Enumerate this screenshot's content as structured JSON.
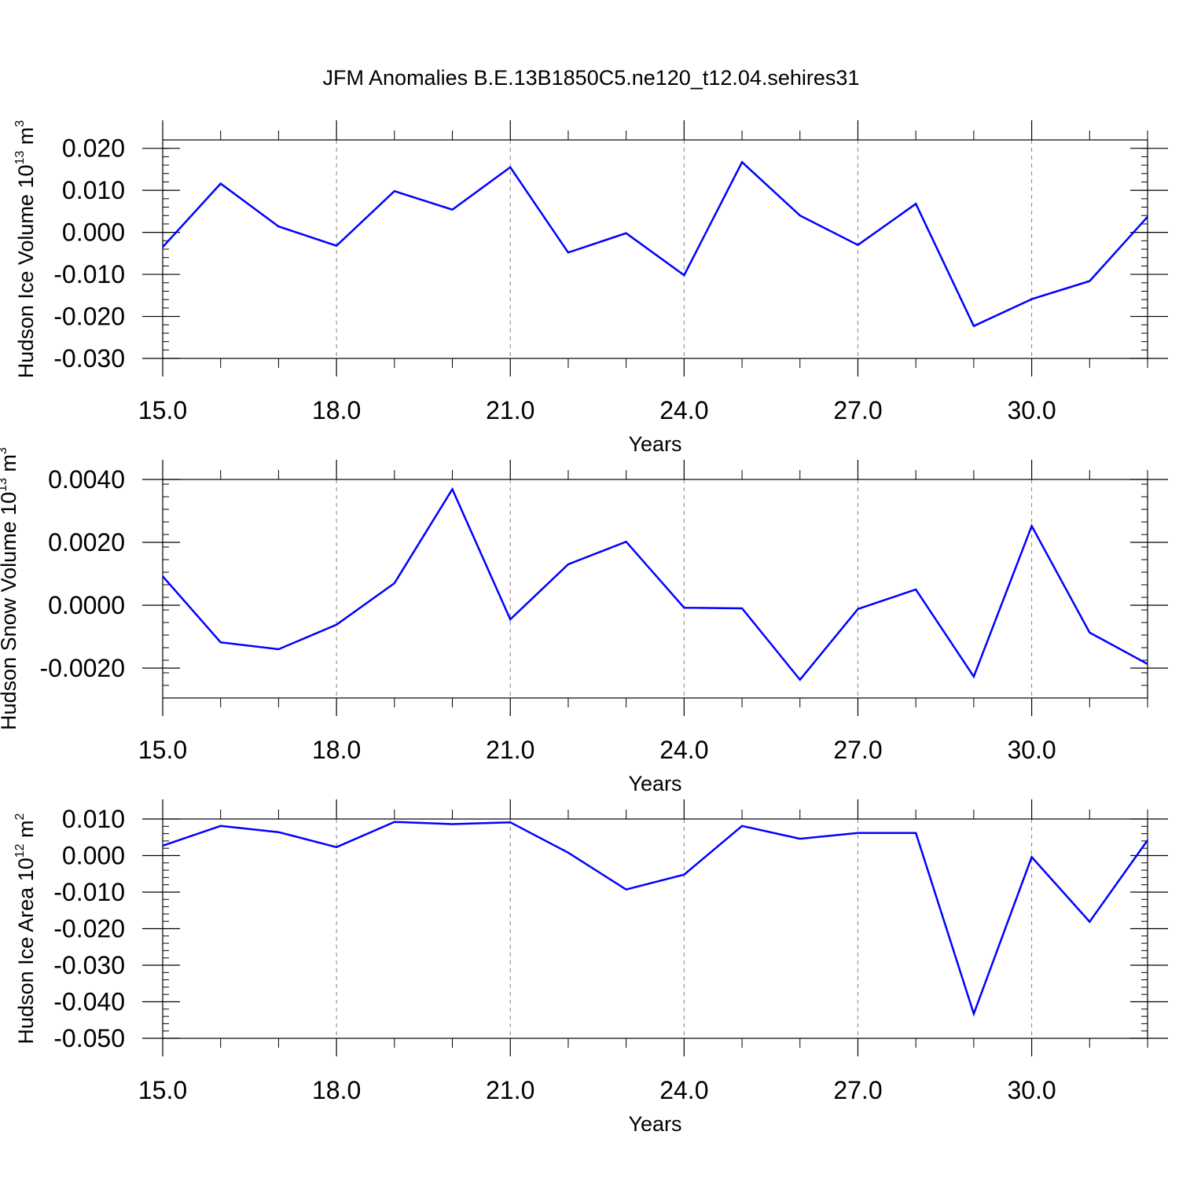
{
  "title": "JFM Anomalies B.E.13B1850C5.ne120_t12.04.sehires31",
  "colors": {
    "series": "#0000ff",
    "axis": "#000000",
    "grid": "#808080"
  },
  "chart_data": [
    {
      "type": "line",
      "ylabel": {
        "text": "Hudson Ice Volume 10",
        "exponent": "13",
        "unit": " m",
        "unit_exponent": "3"
      },
      "xlabel": "Years",
      "xlim": [
        15,
        32
      ],
      "ylim": [
        -0.03,
        0.022
      ],
      "grid": "vertical dashed at major x ticks",
      "xticks": [
        15,
        18,
        21,
        24,
        27,
        30
      ],
      "xtick_labels": [
        "15.0",
        "18.0",
        "21.0",
        "24.0",
        "27.0",
        "30.0"
      ],
      "yticks": [
        0.02,
        0.01,
        0.0,
        -0.01,
        -0.02,
        -0.03
      ],
      "ytick_labels": [
        "0.020",
        "0.010",
        "0.000",
        "-0.010",
        "-0.020",
        "-0.030"
      ],
      "x": [
        15,
        16,
        17,
        18,
        19,
        20,
        21,
        22,
        23,
        24,
        25,
        26,
        27,
        28,
        29,
        30,
        31,
        32
      ],
      "series": [
        {
          "values": [
            -0.0035,
            0.0116,
            0.0014,
            -0.0032,
            0.0098,
            0.0054,
            0.0155,
            -0.0048,
            -0.0002,
            -0.0102,
            0.0167,
            0.004,
            -0.003,
            0.0068,
            -0.0223,
            -0.0159,
            -0.0116,
            0.0037
          ]
        }
      ]
    },
    {
      "type": "line",
      "ylabel": {
        "text": "Hudson Snow Volume 10",
        "exponent": "13",
        "unit": " m",
        "unit_exponent": "3"
      },
      "xlabel": "Years",
      "xlim": [
        15,
        32
      ],
      "ylim": [
        -0.00295,
        0.004
      ],
      "grid": "vertical dashed at major x ticks",
      "xticks": [
        15,
        18,
        21,
        24,
        27,
        30
      ],
      "xtick_labels": [
        "15.0",
        "18.0",
        "21.0",
        "24.0",
        "27.0",
        "30.0"
      ],
      "yticks": [
        0.004,
        0.002,
        0.0,
        -0.002
      ],
      "ytick_labels": [
        "0.0040",
        "0.0020",
        "0.0000",
        "-0.0020"
      ],
      "x": [
        15,
        16,
        17,
        18,
        19,
        20,
        21,
        22,
        23,
        24,
        25,
        26,
        27,
        28,
        29,
        30,
        31,
        32
      ],
      "series": [
        {
          "values": [
            0.00092,
            -0.00118,
            -0.0014,
            -0.00062,
            0.0007,
            0.00369,
            -0.00045,
            0.0013,
            0.00202,
            -8e-05,
            -0.0001,
            -0.00237,
            -0.00012,
            0.0005,
            -0.00227,
            0.00252,
            -0.00087,
            -0.00187
          ]
        }
      ]
    },
    {
      "type": "line",
      "ylabel": {
        "text": "Hudson Ice Area 10",
        "exponent": "12",
        "unit": " m",
        "unit_exponent": "2"
      },
      "xlabel": "Years",
      "xlim": [
        15,
        32
      ],
      "ylim": [
        -0.05,
        0.01
      ],
      "grid": "vertical dashed at major x ticks",
      "xticks": [
        15,
        18,
        21,
        24,
        27,
        30
      ],
      "xtick_labels": [
        "15.0",
        "18.0",
        "21.0",
        "24.0",
        "27.0",
        "30.0"
      ],
      "yticks": [
        0.01,
        0.0,
        -0.01,
        -0.02,
        -0.03,
        -0.04,
        -0.05
      ],
      "ytick_labels": [
        "0.010",
        "0.000",
        "-0.010",
        "-0.020",
        "-0.030",
        "-0.040",
        "-0.050"
      ],
      "x": [
        15,
        16,
        17,
        18,
        19,
        20,
        21,
        22,
        23,
        24,
        25,
        26,
        27,
        28,
        29,
        30,
        31,
        32
      ],
      "series": [
        {
          "values": [
            0.0027,
            0.0081,
            0.0064,
            0.0023,
            0.0092,
            0.0086,
            0.0091,
            0.0008,
            -0.0093,
            -0.0052,
            0.0081,
            0.0046,
            0.0062,
            0.0062,
            -0.0433,
            -0.0004,
            -0.0181,
            0.0042
          ]
        }
      ]
    }
  ]
}
